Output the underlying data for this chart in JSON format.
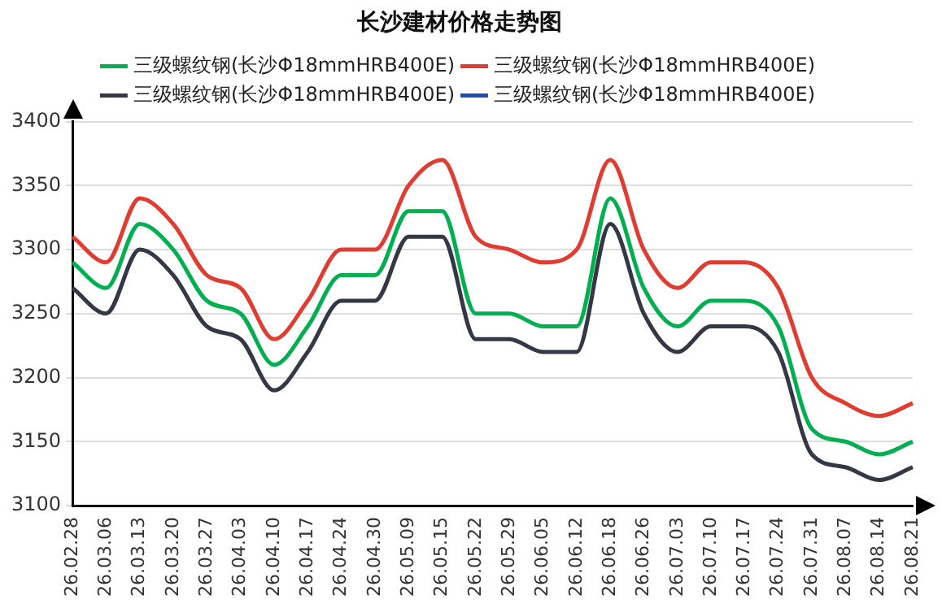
{
  "chart_data": {
    "type": "line",
    "title": "长沙建材价格走势图",
    "categories": [
      "26.02.28",
      "26.03.06",
      "26.03.13",
      "26.03.20",
      "26.03.27",
      "26.04.03",
      "26.04.10",
      "26.04.17",
      "26.04.24",
      "26.04.30",
      "26.05.09",
      "26.05.15",
      "26.05.22",
      "26.05.29",
      "26.06.05",
      "26.06.12",
      "26.06.18",
      "26.06.26",
      "26.07.03",
      "26.07.10",
      "26.07.17",
      "26.07.24",
      "26.07.31",
      "26.08.07",
      "26.08.14",
      "26.08.21"
    ],
    "series": [
      {
        "name": "三级螺纹钢(长沙Φ18mmHRB400E)",
        "color": "#00b050",
        "values": [
          3290,
          3270,
          3320,
          3300,
          3260,
          3250,
          3210,
          3240,
          3280,
          3280,
          3330,
          3330,
          3250,
          3250,
          3240,
          3240,
          3340,
          3270,
          3240,
          3260,
          3260,
          3240,
          3160,
          3150,
          3140,
          3150
        ]
      },
      {
        "name": "三级螺纹钢(长沙Φ18mmHRB400E)",
        "color": "#e03c31",
        "values": [
          3310,
          3290,
          3340,
          3320,
          3280,
          3270,
          3230,
          3260,
          3300,
          3300,
          3350,
          3370,
          3310,
          3300,
          3290,
          3300,
          3370,
          3300,
          3270,
          3290,
          3290,
          3270,
          3200,
          3180,
          3170,
          3180
        ]
      },
      {
        "name": "三级螺纹钢(长沙Φ18mmHRB400E)",
        "color": "#333844",
        "values": [
          3270,
          3250,
          3300,
          3280,
          3240,
          3230,
          3190,
          3220,
          3260,
          3260,
          3310,
          3310,
          3230,
          3230,
          3220,
          3220,
          3320,
          3250,
          3220,
          3240,
          3240,
          3220,
          3140,
          3130,
          3120,
          3130
        ]
      },
      {
        "name": "三级螺纹钢(长沙Φ18mmHRB400E)",
        "color": "#1f4fb4",
        "values": [
          null,
          null,
          null,
          null,
          null,
          null,
          null,
          null,
          null,
          null,
          null,
          null,
          null,
          null,
          null,
          null,
          null,
          null,
          null,
          null,
          null,
          null,
          null,
          null,
          null,
          null
        ]
      }
    ],
    "ylim": [
      3100,
      3400
    ],
    "yticks": [
      3100,
      3150,
      3200,
      3250,
      3300,
      3350,
      3400
    ],
    "grid": "y",
    "legend": "top",
    "marker": "none",
    "line_style": "solid"
  }
}
